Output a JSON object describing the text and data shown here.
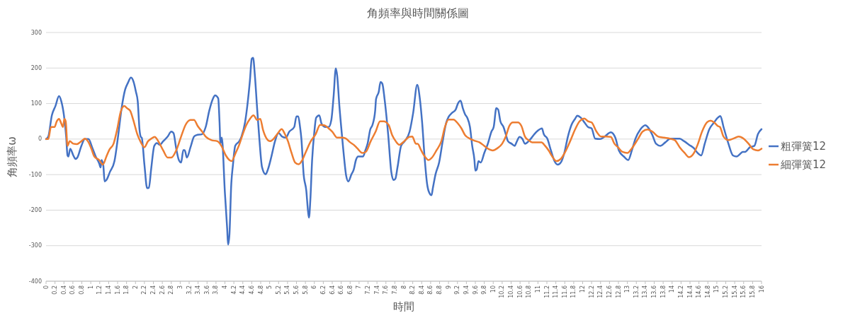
{
  "chart_data": {
    "type": "line",
    "title": "角頻率與時間關係圖",
    "xlabel": "時間",
    "ylabel": "角頻率ω",
    "xlim": [
      0,
      16
    ],
    "ylim": [
      -400,
      300
    ],
    "yticks": [
      -400,
      -300,
      -200,
      -100,
      0,
      100,
      200,
      300
    ],
    "xticks": [
      0,
      0.2,
      0.4,
      0.6,
      0.8,
      1,
      1.2,
      1.4,
      1.6,
      1.8,
      2,
      2.2,
      2.4,
      2.6,
      2.8,
      3,
      3.2,
      3.4,
      3.6,
      3.8,
      4,
      4.2,
      4.4,
      4.6,
      4.8,
      5,
      5.2,
      5.4,
      5.6,
      5.8,
      6,
      6.2,
      6.4,
      6.6,
      6.8,
      7,
      7.2,
      7.4,
      7.6,
      7.8,
      8,
      8.2,
      8.4,
      8.6,
      8.8,
      9,
      9.2,
      9.4,
      9.6,
      9.8,
      10,
      10.2,
      10.4,
      10.6,
      10.8,
      11,
      11.2,
      11.4,
      11.6,
      11.8,
      12,
      12.2,
      12.4,
      12.6,
      12.8,
      13,
      13.2,
      13.4,
      13.6,
      13.8,
      14,
      14.2,
      14.4,
      14.6,
      14.8,
      15,
      15.2,
      15.4,
      15.6,
      15.8,
      16
    ],
    "grid": "y",
    "legend": "right",
    "marker": "none",
    "line_style": "solid",
    "series": [
      {
        "name": "粗彈簧12",
        "color": "#4472c4",
        "x": [
          0,
          0.05,
          0.13,
          0.21,
          0.29,
          0.34,
          0.4,
          0.45,
          0.48,
          0.5,
          0.54,
          0.61,
          0.66,
          0.7,
          0.79,
          0.87,
          0.95,
          1.03,
          1.11,
          1.19,
          1.22,
          1.24,
          1.28,
          1.31,
          1.35,
          1.43,
          1.53,
          1.61,
          1.69,
          1.77,
          1.83,
          1.9,
          1.96,
          2.01,
          2.05,
          2.09,
          2.12,
          2.14,
          2.2,
          2.26,
          2.3,
          2.35,
          2.42,
          2.48,
          2.54,
          2.62,
          2.72,
          2.8,
          2.85,
          2.91,
          2.97,
          3.02,
          3.07,
          3.1,
          3.15,
          3.23,
          3.31,
          3.36,
          3.49,
          3.57,
          3.65,
          3.73,
          3.78,
          3.85,
          3.88,
          3.9,
          3.93,
          4,
          4.05,
          4.07,
          4.1,
          4.14,
          4.18,
          4.23,
          4.32,
          4.37,
          4.45,
          4.5,
          4.56,
          4.6,
          4.63,
          4.67,
          4.72,
          4.77,
          4.83,
          4.91,
          4.96,
          5.04,
          5.12,
          5.2,
          5.28,
          5.36,
          5.44,
          5.55,
          5.6,
          5.64,
          5.68,
          5.71,
          5.76,
          5.82,
          5.86,
          5.88,
          5.91,
          5.95,
          6,
          6.04,
          6.11,
          6.16,
          6.24,
          6.32,
          6.38,
          6.43,
          6.48,
          6.51,
          6.56,
          6.62,
          6.67,
          6.71,
          6.76,
          6.83,
          6.88,
          6.93,
          6.98,
          7.09,
          7.14,
          7.19,
          7.25,
          7.3,
          7.36,
          7.38,
          7.44,
          7.48,
          7.52,
          7.57,
          7.65,
          7.72,
          7.77,
          7.81,
          7.86,
          7.94,
          8.02,
          8.13,
          8.21,
          8.3,
          8.36,
          8.41,
          8.47,
          8.52,
          8.56,
          8.62,
          8.65,
          8.71,
          8.79,
          8.87,
          8.95,
          9,
          9.08,
          9.16,
          9.21,
          9.27,
          9.32,
          9.37,
          9.42,
          9.48,
          9.53,
          9.58,
          9.6,
          9.63,
          9.67,
          9.72,
          9.8,
          9.88,
          9.96,
          10.01,
          10.07,
          10.11,
          10.16,
          10.23,
          10.28,
          10.33,
          10.41,
          10.48,
          10.52,
          10.59,
          10.65,
          10.71,
          10.79,
          10.84,
          10.92,
          11,
          11.09,
          11.13,
          11.21,
          11.29,
          11.37,
          11.44,
          11.52,
          11.59,
          11.67,
          11.75,
          11.83,
          11.88,
          11.96,
          12.04,
          12.12,
          12.2,
          12.28,
          12.39,
          12.49,
          12.63,
          12.73,
          12.81,
          12.92,
          13.02,
          13.1,
          13.18,
          13.29,
          13.4,
          13.48,
          13.56,
          13.64,
          13.74,
          13.85,
          13.96,
          14.06,
          14.17,
          14.27,
          14.38,
          14.49,
          14.57,
          14.65,
          14.73,
          14.83,
          14.94,
          15.02,
          15.08,
          15.15,
          15.26,
          15.36,
          15.44,
          15.52,
          15.58,
          15.63,
          15.74,
          15.84,
          15.92,
          16
        ],
        "values": [
          0,
          7,
          67,
          93,
          121,
          107,
          67,
          7,
          -46,
          -49,
          -27,
          -46,
          -56,
          -52,
          -19,
          0,
          0,
          -23,
          -49,
          -69,
          -80,
          -59,
          -74,
          -119,
          -115,
          -92,
          -62,
          7,
          87,
          140,
          158,
          173,
          160,
          133,
          107,
          27,
          6,
          4,
          -72,
          -138,
          -137,
          -85,
          -19,
          -11,
          -16,
          -6,
          7,
          21,
          17,
          -26,
          -59,
          -66,
          -31,
          -31,
          -52,
          -23,
          7,
          11,
          14,
          34,
          80,
          113,
          123,
          115,
          47,
          -13,
          4,
          -152,
          -251,
          -297,
          -271,
          -132,
          -72,
          -19,
          -6,
          7,
          47,
          93,
          166,
          226,
          229,
          179,
          87,
          1,
          -79,
          -99,
          -86,
          -49,
          -6,
          17,
          7,
          4,
          21,
          34,
          64,
          64,
          34,
          1,
          -99,
          -145,
          -205,
          -221,
          -172,
          -59,
          21,
          60,
          67,
          44,
          34,
          34,
          54,
          120,
          199,
          179,
          93,
          7,
          -59,
          -102,
          -119,
          -99,
          -86,
          -59,
          -49,
          -49,
          -32,
          -13,
          27,
          40,
          80,
          113,
          133,
          161,
          156,
          113,
          14,
          -92,
          -115,
          -112,
          -79,
          -19,
          -6,
          21,
          74,
          153,
          113,
          47,
          -59,
          -125,
          -148,
          -158,
          -138,
          -99,
          -66,
          -6,
          47,
          62,
          74,
          83,
          100,
          108,
          87,
          70,
          60,
          34,
          -19,
          -59,
          -89,
          -86,
          -62,
          -66,
          -39,
          -13,
          21,
          34,
          87,
          83,
          50,
          34,
          14,
          -6,
          -13,
          -19,
          -9,
          6,
          1,
          -13,
          -6,
          1,
          14,
          24,
          30,
          14,
          1,
          -32,
          -62,
          -72,
          -64,
          -39,
          7,
          40,
          57,
          66,
          60,
          47,
          34,
          30,
          1,
          0,
          7,
          19,
          4,
          -32,
          -49,
          -59,
          -32,
          1,
          27,
          39,
          30,
          11,
          -13,
          -19,
          -9,
          1,
          1,
          1,
          -6,
          -16,
          -26,
          -39,
          -46,
          -13,
          27,
          47,
          60,
          65,
          34,
          -13,
          -46,
          -49,
          -42,
          -36,
          -36,
          -23,
          -19,
          14,
          28
        ]
      },
      {
        "name": "細彈簧12",
        "color": "#ed7d31",
        "x": [
          0,
          0.05,
          0.11,
          0.19,
          0.24,
          0.29,
          0.34,
          0.38,
          0.41,
          0.44,
          0.48,
          0.53,
          0.61,
          0.69,
          0.79,
          0.87,
          0.93,
          1.01,
          1.08,
          1.19,
          1.27,
          1.35,
          1.42,
          1.51,
          1.59,
          1.67,
          1.75,
          1.81,
          1.88,
          1.95,
          2.04,
          2.12,
          2.2,
          2.28,
          2.35,
          2.43,
          2.51,
          2.62,
          2.72,
          2.8,
          2.91,
          3.02,
          3.12,
          3.23,
          3.31,
          3.39,
          3.49,
          3.57,
          3.7,
          3.83,
          3.92,
          4.02,
          4.1,
          4.15,
          4.24,
          4.32,
          4.4,
          4.48,
          4.56,
          4.64,
          4.72,
          4.79,
          4.85,
          4.93,
          5.01,
          5.09,
          5.17,
          5.27,
          5.33,
          5.41,
          5.49,
          5.57,
          5.65,
          5.73,
          5.81,
          5.92,
          6.03,
          6.13,
          6.22,
          6.32,
          6.4,
          6.51,
          6.62,
          6.7,
          6.8,
          6.88,
          6.96,
          7.07,
          7.15,
          7.26,
          7.37,
          7.47,
          7.55,
          7.66,
          7.74,
          7.82,
          7.9,
          8.01,
          8.12,
          8.19,
          8.27,
          8.31,
          8.39,
          8.47,
          8.55,
          8.63,
          8.73,
          8.84,
          8.92,
          9,
          9.11,
          9.21,
          9.29,
          9.37,
          9.48,
          9.59,
          9.69,
          9.8,
          9.91,
          9.99,
          10.09,
          10.2,
          10.28,
          10.36,
          10.44,
          10.55,
          10.63,
          10.71,
          10.79,
          10.87,
          10.97,
          11.08,
          11.16,
          11.24,
          11.32,
          11.41,
          11.51,
          11.61,
          11.72,
          11.83,
          11.93,
          12.04,
          12.12,
          12.2,
          12.31,
          12.41,
          12.52,
          12.63,
          12.71,
          12.79,
          12.89,
          13,
          13.1,
          13.24,
          13.34,
          13.45,
          13.56,
          13.69,
          13.82,
          13.96,
          14.06,
          14.17,
          14.28,
          14.38,
          14.49,
          14.57,
          14.67,
          14.78,
          14.86,
          14.94,
          15.02,
          15.07,
          15.15,
          15.26,
          15.36,
          15.49,
          15.6,
          15.71,
          15.82,
          15.92,
          16
        ],
        "values": [
          0,
          0,
          34,
          34,
          50,
          57,
          44,
          34,
          57,
          50,
          -19,
          -6,
          -13,
          -14,
          -6,
          1,
          -5,
          -26,
          -49,
          -59,
          -72,
          -49,
          -29,
          -13,
          27,
          77,
          93,
          87,
          80,
          54,
          14,
          -9,
          -23,
          -6,
          1,
          6,
          -6,
          -32,
          -52,
          -52,
          -32,
          7,
          40,
          54,
          54,
          37,
          21,
          7,
          -3,
          -6,
          -19,
          -46,
          -59,
          -62,
          -39,
          -16,
          14,
          40,
          57,
          67,
          54,
          57,
          27,
          2,
          -6,
          1,
          14,
          28,
          17,
          -6,
          -39,
          -66,
          -71,
          -59,
          -36,
          -6,
          14,
          40,
          39,
          30,
          21,
          4,
          4,
          2,
          -9,
          -16,
          -26,
          -39,
          -36,
          -6,
          21,
          50,
          50,
          40,
          11,
          -6,
          -16,
          -6,
          6,
          7,
          -13,
          -13,
          -32,
          -49,
          -59,
          -52,
          -32,
          -6,
          34,
          55,
          55,
          44,
          30,
          11,
          1,
          -5,
          -9,
          -19,
          -29,
          -32,
          -26,
          -13,
          7,
          37,
          47,
          47,
          37,
          7,
          -3,
          -9,
          -9,
          -9,
          -19,
          -32,
          -49,
          -62,
          -56,
          -36,
          -6,
          27,
          50,
          58,
          50,
          47,
          21,
          7,
          7,
          6,
          -13,
          -23,
          -36,
          -39,
          -26,
          1,
          21,
          27,
          21,
          7,
          4,
          1,
          -3,
          -23,
          -39,
          -51,
          -39,
          -16,
          21,
          47,
          52,
          47,
          37,
          34,
          7,
          -3,
          1,
          7,
          1,
          -13,
          -29,
          -32,
          -27
        ]
      }
    ]
  }
}
